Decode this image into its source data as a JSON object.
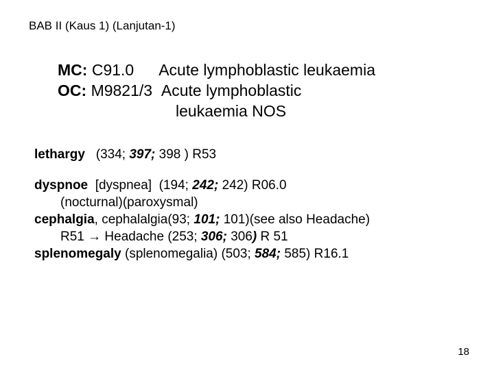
{
  "header": "BAB II  (Kaus 1) (Lanjutan-1)",
  "mc": {
    "label": "MC",
    "code": "C91.0",
    "desc": "Acute lymphoblastic leukaemia"
  },
  "oc": {
    "label": "OC",
    "code": "M9821/3",
    "desc1": "Acute lymphoblastic",
    "desc2": "leukaemia NOS"
  },
  "lethargy": {
    "term": "lethargy",
    "refs_plain_a": "(334; ",
    "refs_bold": "397; ",
    "refs_plain_b": "398 ) R53"
  },
  "dyspnoe": {
    "term": "dyspnoe",
    "bracket": "[dyspnea]",
    "refs_a": "(194; ",
    "refs_bold": "242; ",
    "refs_b": "242) ",
    "code": "R06.0",
    "sub": "(nocturnal)(paroxysmal)"
  },
  "cephalgia": {
    "term": "cephalgia",
    "after": ", cephalalgia(93; ",
    "bold": "101; ",
    "after2": "101)(see also Headache)",
    "line2_a": "R51 ",
    "arrow": "→",
    "line2_b": " Headache (253; ",
    "line2_bold": "306; ",
    "line2_c": "306",
    "line2_bold2": ")",
    "line2_d": "  R 51"
  },
  "spleno": {
    "term": "splenomegaly",
    "after_a": " (splenomegalia) (503; ",
    "bold": "584; ",
    "after_b": "585)  R16.1"
  },
  "page": "18"
}
